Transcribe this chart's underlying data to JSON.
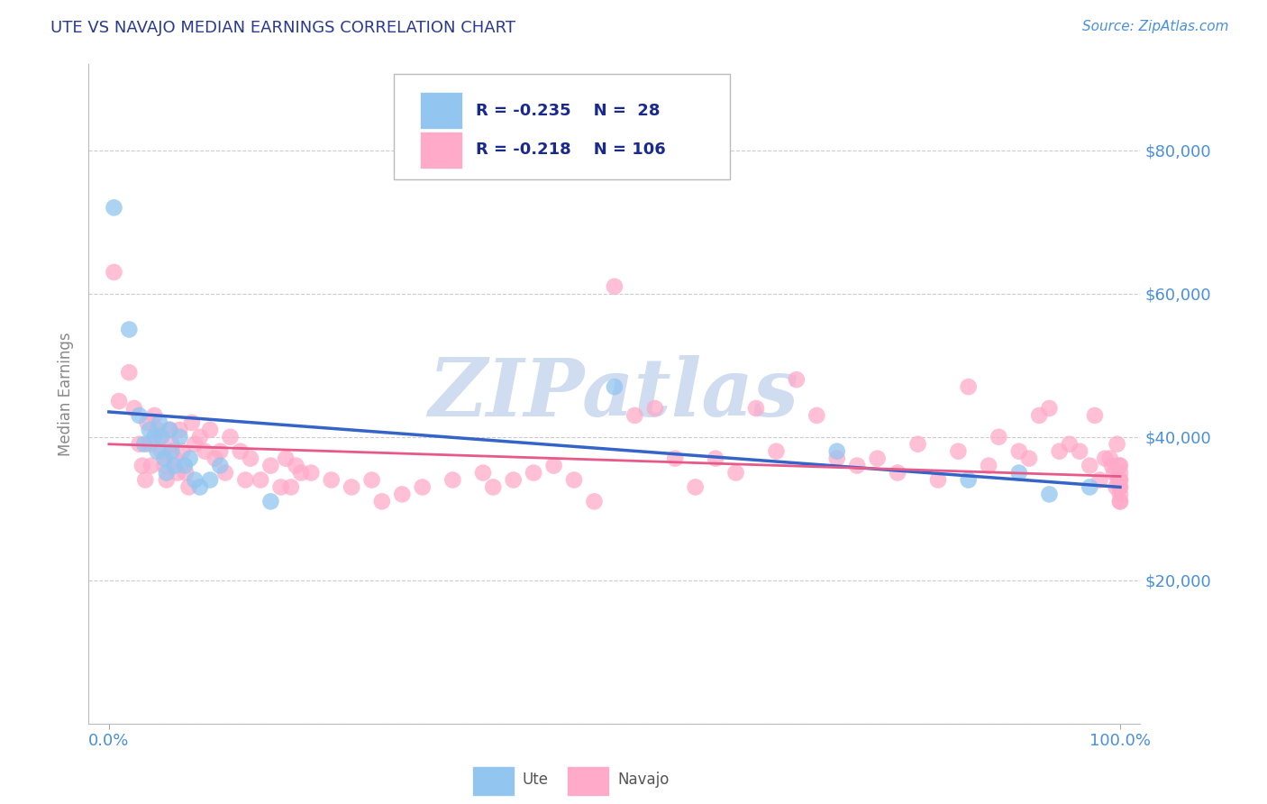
{
  "title": "UTE VS NAVAJO MEDIAN EARNINGS CORRELATION CHART",
  "source_text": "Source: ZipAtlas.com",
  "ylabel": "Median Earnings",
  "xlim": [
    -0.02,
    1.02
  ],
  "ylim": [
    0,
    92000
  ],
  "yticks": [
    0,
    20000,
    40000,
    60000,
    80000
  ],
  "ytick_labels": [
    "",
    "$20,000",
    "$40,000",
    "$60,000",
    "$80,000"
  ],
  "xtick_positions": [
    0.0,
    1.0
  ],
  "xtick_labels": [
    "0.0%",
    "100.0%"
  ],
  "legend_ute_label": "Ute",
  "legend_navajo_label": "Navajo",
  "ute_R": -0.235,
  "ute_N": 28,
  "navajo_R": -0.218,
  "navajo_N": 106,
  "ute_color": "#92C5F0",
  "navajo_color": "#FFAAC8",
  "ute_line_color": "#3464C8",
  "navajo_line_color": "#E85888",
  "background_color": "#FFFFFF",
  "grid_color": "#CCCCCC",
  "title_color": "#2B3A8C",
  "axis_label_color": "#888888",
  "tick_label_color": "#4A90D9",
  "legend_text_color": "#1A2A8C",
  "watermark_color": "#D0DCF0",
  "ute_scatter_x": [
    0.005,
    0.02,
    0.03,
    0.035,
    0.04,
    0.045,
    0.048,
    0.05,
    0.052,
    0.055,
    0.057,
    0.06,
    0.062,
    0.065,
    0.07,
    0.075,
    0.08,
    0.085,
    0.09,
    0.1,
    0.11,
    0.16,
    0.5,
    0.72,
    0.85,
    0.9,
    0.93,
    0.97
  ],
  "ute_scatter_y": [
    72000,
    55000,
    43000,
    39000,
    41000,
    40000,
    38000,
    42000,
    40000,
    37000,
    35000,
    41000,
    38000,
    36000,
    40000,
    36000,
    37000,
    34000,
    33000,
    34000,
    36000,
    31000,
    47000,
    38000,
    34000,
    35000,
    32000,
    33000
  ],
  "navajo_scatter_x": [
    0.005,
    0.01,
    0.02,
    0.025,
    0.03,
    0.033,
    0.036,
    0.038,
    0.04,
    0.042,
    0.045,
    0.048,
    0.05,
    0.052,
    0.055,
    0.057,
    0.06,
    0.062,
    0.065,
    0.068,
    0.07,
    0.073,
    0.076,
    0.079,
    0.082,
    0.085,
    0.09,
    0.095,
    0.1,
    0.105,
    0.11,
    0.115,
    0.12,
    0.13,
    0.135,
    0.14,
    0.15,
    0.16,
    0.17,
    0.175,
    0.18,
    0.185,
    0.19,
    0.2,
    0.22,
    0.24,
    0.26,
    0.27,
    0.29,
    0.31,
    0.34,
    0.37,
    0.38,
    0.4,
    0.42,
    0.44,
    0.46,
    0.48,
    0.5,
    0.52,
    0.54,
    0.56,
    0.58,
    0.6,
    0.62,
    0.64,
    0.66,
    0.68,
    0.7,
    0.72,
    0.74,
    0.76,
    0.78,
    0.8,
    0.82,
    0.84,
    0.85,
    0.87,
    0.88,
    0.9,
    0.91,
    0.92,
    0.93,
    0.94,
    0.95,
    0.96,
    0.97,
    0.975,
    0.98,
    0.985,
    0.99,
    0.992,
    0.994,
    0.996,
    0.997,
    0.998,
    0.999,
    1.0,
    1.0,
    1.0,
    1.0,
    1.0,
    1.0,
    1.0,
    1.0,
    1.0
  ],
  "navajo_scatter_y": [
    63000,
    45000,
    49000,
    44000,
    39000,
    36000,
    34000,
    42000,
    39000,
    36000,
    43000,
    41000,
    40000,
    38000,
    36000,
    34000,
    41000,
    39000,
    37000,
    35000,
    41000,
    38000,
    35000,
    33000,
    42000,
    39000,
    40000,
    38000,
    41000,
    37000,
    38000,
    35000,
    40000,
    38000,
    34000,
    37000,
    34000,
    36000,
    33000,
    37000,
    33000,
    36000,
    35000,
    35000,
    34000,
    33000,
    34000,
    31000,
    32000,
    33000,
    34000,
    35000,
    33000,
    34000,
    35000,
    36000,
    34000,
    31000,
    61000,
    43000,
    44000,
    37000,
    33000,
    37000,
    35000,
    44000,
    38000,
    48000,
    43000,
    37000,
    36000,
    37000,
    35000,
    39000,
    34000,
    38000,
    47000,
    36000,
    40000,
    38000,
    37000,
    43000,
    44000,
    38000,
    39000,
    38000,
    36000,
    43000,
    34000,
    37000,
    37000,
    36000,
    35000,
    33000,
    39000,
    34000,
    36000,
    35000,
    33000,
    31000,
    34000,
    33000,
    32000,
    31000,
    36000,
    34000
  ]
}
